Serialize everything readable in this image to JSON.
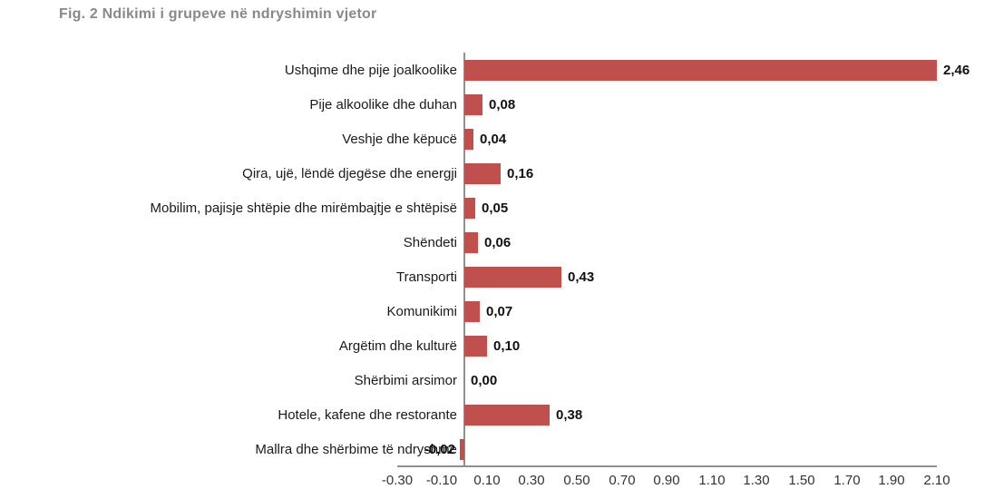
{
  "figure": {
    "title": "Fig. 2 Ndikimi i grupeve në ndryshimin vjetor"
  },
  "chart_data": {
    "type": "bar",
    "orientation": "horizontal",
    "title": "Fig. 2 Ndikimi i grupeve në ndryshimin vjetor",
    "categories": [
      "Ushqime dhe pije joalkoolike",
      "Pije alkoolike dhe duhan",
      "Veshje dhe këpucë",
      "Qira, ujë, lëndë djegëse dhe energji",
      "Mobilim, pajisje shtëpie dhe mirëmbajtje e shtëpisë",
      "Shëndeti",
      "Transporti",
      "Komunikimi",
      "Argëtim dhe kulturë",
      "Shërbimi arsimor",
      "Hotele, kafene dhe restorante",
      "Mallra dhe shërbime të ndryshme"
    ],
    "values": [
      2.46,
      0.08,
      0.04,
      0.16,
      0.05,
      0.06,
      0.43,
      0.07,
      0.1,
      0.0,
      0.38,
      -0.02
    ],
    "value_labels": [
      "2,46",
      "0,08",
      "0,04",
      "0,16",
      "0,05",
      "0,06",
      "0,43",
      "0,07",
      "0,10",
      "0,00",
      "0,38",
      "-0,02"
    ],
    "x_tick_labels": [
      "-0.30",
      "-0.10",
      "0.10",
      "0.30",
      "0.50",
      "0.70",
      "0.90",
      "1.10",
      "1.30",
      "1.50",
      "1.70",
      "1.90",
      "2.10"
    ],
    "xlim": [
      -0.3,
      2.1
    ],
    "x_tick_step": 0.2,
    "grid": false,
    "legend": false,
    "bars_clipped_to_xlim": true,
    "xlabel": "",
    "ylabel": "",
    "colors": {
      "bar": "#C0504D",
      "title_text": "#898989",
      "category_text": "#1A1A1A",
      "value_text": "#111111",
      "tick_text": "#333333",
      "axis_line": "#8F8F8F",
      "background": "#FFFFFF"
    }
  }
}
